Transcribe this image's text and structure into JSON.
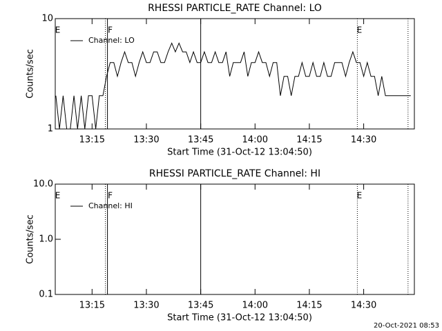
{
  "chart_data": [
    {
      "type": "line",
      "title": "RHESSI PARTICLE_RATE Channel: LO",
      "xlabel": "Start Time (31-Oct-12 13:04:50)",
      "ylabel": "Counts/sec",
      "log_y": true,
      "xlim": [
        "13:04:50",
        "14:44:00"
      ],
      "ylim": [
        1,
        10
      ],
      "yticks": [
        1,
        10
      ],
      "xticks": [
        "13:15",
        "13:30",
        "13:45",
        "14:00",
        "14:15",
        "14:30"
      ],
      "markers": [
        {
          "x": "13:18:40",
          "style": "dotted"
        },
        {
          "x": "13:19:15",
          "style": "solid"
        },
        {
          "x": "13:45:00",
          "style": "solid"
        },
        {
          "x": "14:28:15",
          "style": "dotted"
        },
        {
          "x": "14:42:15",
          "style": "dotted"
        }
      ],
      "annotations": [
        {
          "text": "E",
          "x": "13:05:30"
        },
        {
          "text": "F",
          "x": "13:20:00"
        },
        {
          "text": "E",
          "x": "14:28:50"
        }
      ],
      "legend": "upper left",
      "x": [
        "13:05",
        "13:06",
        "13:07",
        "13:08",
        "13:09",
        "13:10",
        "13:11",
        "13:12",
        "13:13",
        "13:14",
        "13:15",
        "13:16",
        "13:17",
        "13:18",
        "13:19",
        "13:20",
        "13:21",
        "13:22",
        "13:23",
        "13:24",
        "13:25",
        "13:26",
        "13:27",
        "13:28",
        "13:29",
        "13:30",
        "13:31",
        "13:32",
        "13:33",
        "13:34",
        "13:35",
        "13:36",
        "13:37",
        "13:38",
        "13:39",
        "13:40",
        "13:41",
        "13:42",
        "13:43",
        "13:44",
        "13:45",
        "13:46",
        "13:47",
        "13:48",
        "13:49",
        "13:50",
        "13:51",
        "13:52",
        "13:53",
        "13:54",
        "13:55",
        "13:56",
        "13:57",
        "13:58",
        "13:59",
        "14:00",
        "14:01",
        "14:02",
        "14:03",
        "14:04",
        "14:05",
        "14:06",
        "14:07",
        "14:08",
        "14:09",
        "14:10",
        "14:11",
        "14:12",
        "14:13",
        "14:14",
        "14:15",
        "14:16",
        "14:17",
        "14:18",
        "14:19",
        "14:20",
        "14:21",
        "14:22",
        "14:23",
        "14:24",
        "14:25",
        "14:26",
        "14:27",
        "14:28",
        "14:29",
        "14:30",
        "14:31",
        "14:32",
        "14:33",
        "14:34",
        "14:35",
        "14:36",
        "14:37",
        "14:38",
        "14:39",
        "14:40",
        "14:41",
        "14:42",
        "14:43"
      ],
      "series": [
        {
          "name": "Channel: LO",
          "color": "#000000",
          "values": [
            2,
            1,
            2,
            1,
            1,
            2,
            1,
            2,
            1,
            2,
            2,
            1,
            2,
            2,
            3,
            4,
            4,
            3,
            4,
            5,
            4,
            4,
            3,
            4,
            5,
            4,
            4,
            5,
            5,
            4,
            4,
            5,
            6,
            5,
            6,
            5,
            5,
            4,
            5,
            4,
            4,
            5,
            4,
            4,
            5,
            4,
            4,
            5,
            3,
            4,
            4,
            4,
            5,
            3,
            4,
            4,
            5,
            4,
            4,
            3,
            4,
            4,
            2,
            3,
            3,
            2,
            3,
            3,
            4,
            3,
            3,
            4,
            3,
            3,
            4,
            3,
            3,
            4,
            4,
            4,
            3,
            4,
            5,
            4,
            4,
            3,
            4,
            3,
            3,
            2,
            3,
            2,
            2,
            2,
            2,
            2,
            2,
            2,
            2
          ]
        }
      ]
    },
    {
      "type": "line",
      "title": "RHESSI PARTICLE_RATE Channel: HI",
      "xlabel": "Start Time (31-Oct-12 13:04:50)",
      "ylabel": "Counts/sec",
      "log_y": true,
      "xlim": [
        "13:04:50",
        "14:44:00"
      ],
      "ylim": [
        0.1,
        10
      ],
      "yticks": [
        {
          "value": 0.1,
          "label": "0.1"
        },
        {
          "value": 1,
          "label": "1.0"
        },
        {
          "value": 10,
          "label": "10.0"
        }
      ],
      "xticks": [
        "13:15",
        "13:30",
        "13:45",
        "14:00",
        "14:15",
        "14:30"
      ],
      "markers": [
        {
          "x": "13:18:40",
          "style": "dotted"
        },
        {
          "x": "13:19:15",
          "style": "solid"
        },
        {
          "x": "13:45:00",
          "style": "solid"
        },
        {
          "x": "14:28:15",
          "style": "dotted"
        },
        {
          "x": "14:42:15",
          "style": "dotted"
        }
      ],
      "annotations": [
        {
          "text": "E",
          "x": "13:05:30"
        },
        {
          "text": "F",
          "x": "13:20:00"
        },
        {
          "text": "E",
          "x": "14:28:50"
        }
      ],
      "legend": "upper left",
      "x": [],
      "series": [
        {
          "name": "Channel: HI",
          "color": "#000000",
          "values": []
        }
      ]
    }
  ],
  "footer": "20-Oct-2021 08:53"
}
